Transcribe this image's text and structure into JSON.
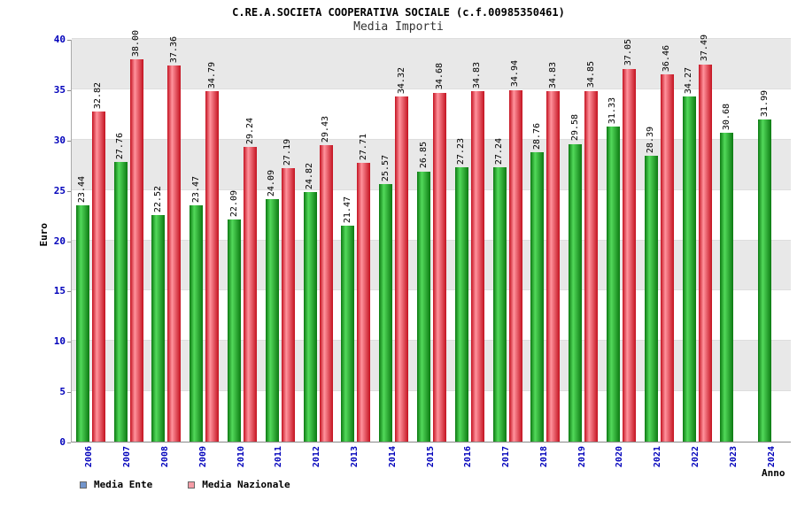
{
  "header": {
    "title": "C.RE.A.SOCIETA COOPERATIVA SOCIALE (c.f.00985350461)",
    "subtitle": "Media Importi"
  },
  "chart_data": {
    "type": "bar",
    "title": "C.RE.A.SOCIETA COOPERATIVA SOCIALE (c.f.00985350461)",
    "subtitle": "Media Importi",
    "xlabel": "Anno",
    "ylabel": "Euro",
    "ylim": [
      0,
      40
    ],
    "yticks": [
      0,
      5,
      10,
      15,
      20,
      25,
      30,
      35,
      40
    ],
    "grid": "alternating-horizontal-bands",
    "band_color": "#e8e8e8",
    "axis_label_color": "#0000bb",
    "legend_position": "bottom-left",
    "categories": [
      "2006",
      "2007",
      "2008",
      "2009",
      "2010",
      "2011",
      "2012",
      "2013",
      "2014",
      "2015",
      "2016",
      "2017",
      "2018",
      "2019",
      "2020",
      "2021",
      "2022",
      "2023",
      "2024"
    ],
    "series": [
      {
        "name": "Media Ente",
        "legend_color": "#7295cc",
        "color_dark": "#0c7a12",
        "color_light": "#52d95a",
        "values": [
          23.44,
          27.76,
          22.52,
          23.47,
          22.09,
          24.09,
          24.82,
          21.47,
          25.57,
          26.85,
          27.23,
          27.24,
          28.76,
          29.58,
          31.33,
          28.39,
          34.27,
          30.68,
          31.99
        ]
      },
      {
        "name": "Media Nazionale",
        "legend_color": "#f59ca6",
        "color_dark": "#c41220",
        "color_light": "#ff929c",
        "values": [
          32.82,
          38.0,
          37.36,
          34.79,
          29.24,
          27.19,
          29.43,
          27.71,
          34.32,
          34.68,
          34.83,
          34.94,
          34.83,
          34.85,
          37.05,
          36.46,
          37.49,
          null,
          null
        ]
      }
    ]
  }
}
